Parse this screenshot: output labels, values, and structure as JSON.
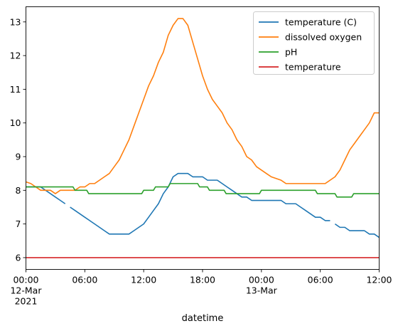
{
  "chart_data": {
    "type": "line",
    "title": "",
    "xlabel": "datetime",
    "ylabel": "",
    "ylim": [
      5.65,
      13.45
    ],
    "xlim_hours": [
      0,
      36
    ],
    "grid": false,
    "legend_position": "top-right",
    "y_ticks": [
      6,
      7,
      8,
      9,
      10,
      11,
      12,
      13
    ],
    "x_ticks": [
      {
        "hour": 0,
        "label": "00:00",
        "sub": "12-Mar",
        "sub2": "2021"
      },
      {
        "hour": 6,
        "label": "06:00"
      },
      {
        "hour": 12,
        "label": "12:00"
      },
      {
        "hour": 18,
        "label": "18:00"
      },
      {
        "hour": 24,
        "label": "00:00",
        "sub": "13-Mar"
      },
      {
        "hour": 30,
        "label": "06:00"
      },
      {
        "hour": 36,
        "label": "12:00"
      }
    ],
    "series": [
      {
        "name": "temperature (C)",
        "color": "#1f77b4",
        "segments": [
          [
            [
              0,
              8.1
            ],
            [
              1.5,
              8.1
            ],
            [
              2,
              8.0
            ],
            [
              2.5,
              7.9
            ],
            [
              3,
              7.8
            ],
            [
              3.5,
              7.7
            ],
            [
              4,
              7.6
            ]
          ],
          [
            [
              4.5,
              7.5
            ],
            [
              5,
              7.4
            ],
            [
              5.5,
              7.3
            ],
            [
              6,
              7.2
            ],
            [
              6.5,
              7.1
            ],
            [
              7,
              7.0
            ],
            [
              7.5,
              6.9
            ],
            [
              8,
              6.8
            ],
            [
              8.5,
              6.7
            ],
            [
              10,
              6.7
            ],
            [
              10.5,
              6.7
            ],
            [
              11,
              6.8
            ],
            [
              11.5,
              6.9
            ],
            [
              12,
              7.0
            ],
            [
              12.5,
              7.2
            ],
            [
              13,
              7.4
            ],
            [
              13.5,
              7.6
            ],
            [
              14,
              7.9
            ],
            [
              14.5,
              8.1
            ],
            [
              15,
              8.4
            ],
            [
              15.5,
              8.5
            ],
            [
              16.5,
              8.5
            ],
            [
              17,
              8.4
            ],
            [
              18,
              8.4
            ],
            [
              18.5,
              8.3
            ],
            [
              19.5,
              8.3
            ],
            [
              20,
              8.2
            ],
            [
              20.5,
              8.1
            ],
            [
              21,
              8.0
            ],
            [
              21.5,
              7.9
            ],
            [
              22,
              7.8
            ],
            [
              22.5,
              7.8
            ],
            [
              23,
              7.7
            ],
            [
              26,
              7.7
            ],
            [
              26.5,
              7.6
            ],
            [
              27.5,
              7.6
            ],
            [
              28,
              7.5
            ],
            [
              28.5,
              7.4
            ],
            [
              29,
              7.3
            ],
            [
              29.5,
              7.2
            ],
            [
              30,
              7.2
            ],
            [
              30.5,
              7.1
            ],
            [
              31,
              7.1
            ]
          ],
          [
            [
              31.5,
              7.0
            ],
            [
              32,
              6.9
            ],
            [
              32.5,
              6.9
            ],
            [
              33,
              6.8
            ],
            [
              34.5,
              6.8
            ],
            [
              35,
              6.7
            ],
            [
              35.5,
              6.7
            ],
            [
              36,
              6.6
            ]
          ]
        ]
      },
      {
        "name": "dissolved oxygen",
        "color": "#ff7f0e",
        "segments": [
          [
            [
              0,
              8.25
            ],
            [
              0.5,
              8.2
            ],
            [
              1,
              8.1
            ],
            [
              1.5,
              8.0
            ],
            [
              2.5,
              8.0
            ],
            [
              3,
              7.9
            ],
            [
              3.5,
              8.0
            ],
            [
              5,
              8.0
            ],
            [
              5.5,
              8.1
            ],
            [
              6,
              8.1
            ],
            [
              6.5,
              8.2
            ],
            [
              7,
              8.2
            ],
            [
              7.5,
              8.3
            ],
            [
              8,
              8.4
            ],
            [
              8.5,
              8.5
            ],
            [
              9,
              8.7
            ],
            [
              9.5,
              8.9
            ],
            [
              10,
              9.2
            ],
            [
              10.5,
              9.5
            ],
            [
              11,
              9.9
            ],
            [
              11.5,
              10.3
            ],
            [
              12,
              10.7
            ],
            [
              12.5,
              11.1
            ],
            [
              13,
              11.4
            ],
            [
              13.5,
              11.8
            ],
            [
              14,
              12.1
            ],
            [
              14.5,
              12.6
            ],
            [
              15,
              12.9
            ],
            [
              15.5,
              13.1
            ],
            [
              16,
              13.1
            ],
            [
              16.5,
              12.9
            ],
            [
              17,
              12.4
            ],
            [
              17.5,
              11.9
            ],
            [
              18,
              11.4
            ],
            [
              18.5,
              11.0
            ],
            [
              19,
              10.7
            ],
            [
              19.5,
              10.5
            ],
            [
              20,
              10.3
            ],
            [
              20.5,
              10.0
            ],
            [
              21,
              9.8
            ],
            [
              21.5,
              9.5
            ],
            [
              22,
              9.3
            ],
            [
              22.5,
              9.0
            ],
            [
              23,
              8.9
            ],
            [
              23.5,
              8.7
            ],
            [
              24,
              8.6
            ],
            [
              24.5,
              8.5
            ],
            [
              25,
              8.4
            ],
            [
              26,
              8.3
            ],
            [
              26.5,
              8.2
            ],
            [
              30.5,
              8.2
            ],
            [
              31,
              8.3
            ],
            [
              31.5,
              8.4
            ],
            [
              32,
              8.6
            ],
            [
              32.5,
              8.9
            ],
            [
              33,
              9.2
            ],
            [
              33.5,
              9.4
            ],
            [
              34,
              9.6
            ],
            [
              34.5,
              9.8
            ],
            [
              35,
              10.0
            ],
            [
              35.5,
              10.3
            ],
            [
              36,
              10.3
            ]
          ]
        ]
      },
      {
        "name": "pH",
        "color": "#2ca02c",
        "segments": [
          [
            [
              0,
              8.1
            ],
            [
              4.8,
              8.1
            ],
            [
              5.0,
              8.0
            ],
            [
              6.2,
              8.0
            ],
            [
              6.4,
              7.9
            ],
            [
              11.8,
              7.9
            ],
            [
              12.0,
              8.0
            ],
            [
              13.0,
              8.0
            ],
            [
              13.2,
              8.1
            ],
            [
              14.5,
              8.1
            ],
            [
              14.7,
              8.2
            ],
            [
              17.5,
              8.2
            ],
            [
              17.7,
              8.1
            ],
            [
              18.5,
              8.1
            ],
            [
              18.7,
              8.0
            ],
            [
              20.2,
              8.0
            ],
            [
              20.4,
              7.9
            ],
            [
              23.8,
              7.9
            ],
            [
              24.0,
              8.0
            ],
            [
              29.5,
              8.0
            ],
            [
              29.7,
              7.9
            ],
            [
              31.5,
              7.9
            ],
            [
              31.7,
              7.8
            ],
            [
              33.2,
              7.8
            ],
            [
              33.4,
              7.9
            ],
            [
              36,
              7.9
            ]
          ]
        ]
      },
      {
        "name": "temperature",
        "color": "#d62728",
        "segments": [
          [
            [
              0,
              6.0
            ],
            [
              36,
              6.0
            ]
          ]
        ]
      }
    ]
  }
}
